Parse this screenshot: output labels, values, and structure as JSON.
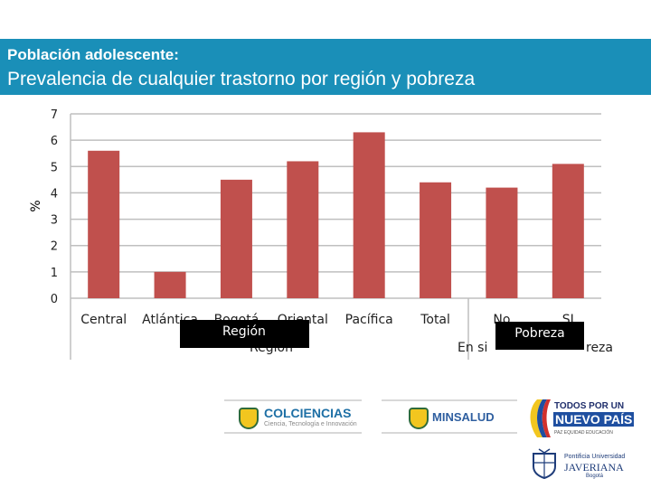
{
  "header": {
    "subtitle": "Población adolescente:",
    "title": "Prevalencia de cualquier trastorno por región y pobreza",
    "band_color": "#1a8fb8"
  },
  "chart_data": {
    "type": "bar",
    "categories": [
      "Central",
      "Atlántica",
      "Bogotá",
      "Oriental",
      "Pacífica",
      "Total",
      "No",
      "SI"
    ],
    "values": [
      5.6,
      1.0,
      4.5,
      5.2,
      6.3,
      4.4,
      4.2,
      5.1
    ],
    "ylabel": "%",
    "ylim": [
      0,
      7
    ],
    "yticks": [
      "0",
      "1",
      "2",
      "3",
      "4",
      "5",
      "6",
      "7"
    ],
    "grid": true,
    "bar_color": "#c0504d",
    "groups": [
      {
        "label": "Región",
        "partial_label": "Región"
      },
      {
        "label": "Pobreza",
        "partial_label_left": "En si",
        "partial_label_right": "reza"
      }
    ]
  },
  "logos": {
    "colciencias": {
      "name": "COLCIENCIAS",
      "tagline": "Ciencia, Tecnología e Innovación",
      "icon": "colombia-coat-of-arms-icon"
    },
    "minsalud": {
      "name": "MINSALUD",
      "icon": "colombia-coat-of-arms-icon"
    },
    "todos": {
      "line1": "TODOS POR UN",
      "line2": "NUEVO PAÍS",
      "line3": "PAZ  EQUIDAD  EDUCACIÓN",
      "icon": "colombia-flag-swoosh-icon"
    },
    "javeriana": {
      "line1": "Pontificia Universidad",
      "line2": "JAVERIANA",
      "line3": "Bogotá",
      "icon": "javeriana-crest-icon"
    }
  }
}
